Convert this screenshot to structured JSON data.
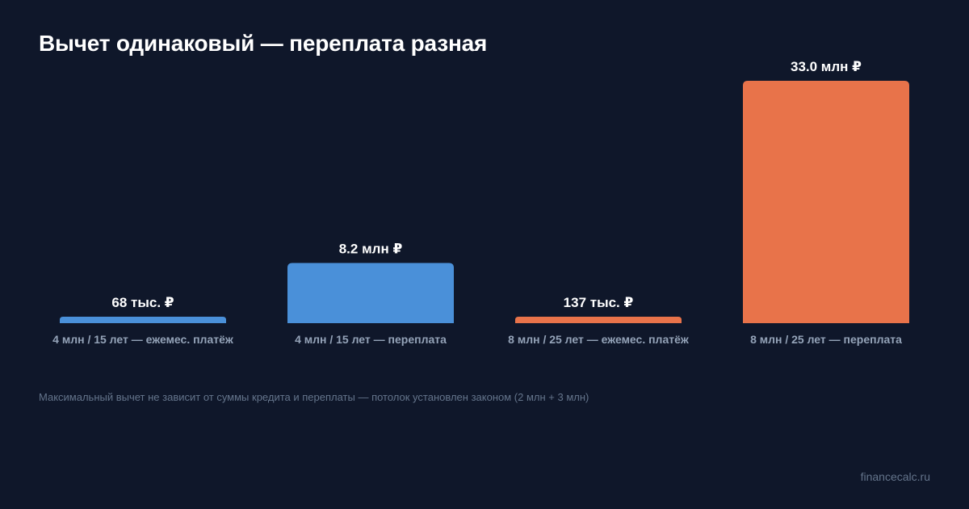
{
  "title": "Вычет одинаковый — переплата разная",
  "footnote": "Максимальный вычет не зависит от суммы кредита и переплаты — потолок установлен законом (2 млн + 3 млн)",
  "brand": "financecalc.ru",
  "colors": {
    "background": "#0f172a",
    "blue": "#4a90d9",
    "orange": "#e8734a",
    "label": "#94a3b8",
    "value": "#ffffff"
  },
  "chart_data": {
    "type": "bar",
    "unit": "rub",
    "categories": [
      "4 млн / 15 лет — ежемес. платёж",
      "4 млн / 15 лет — переплата",
      "8 млн / 25 лет — ежемес. платёж",
      "8 млн / 25 лет — переплата"
    ],
    "values": [
      68000,
      8200000,
      137000,
      33000000
    ],
    "value_labels": [
      "68 тыс. ₽",
      "8.2 млн ₽",
      "137 тыс. ₽",
      "33.0 млн ₽"
    ],
    "bar_colors": [
      "#4a90d9",
      "#4a90d9",
      "#e8734a",
      "#e8734a"
    ],
    "ylim": [
      0,
      33000000
    ],
    "grid": false,
    "legend": "none"
  }
}
